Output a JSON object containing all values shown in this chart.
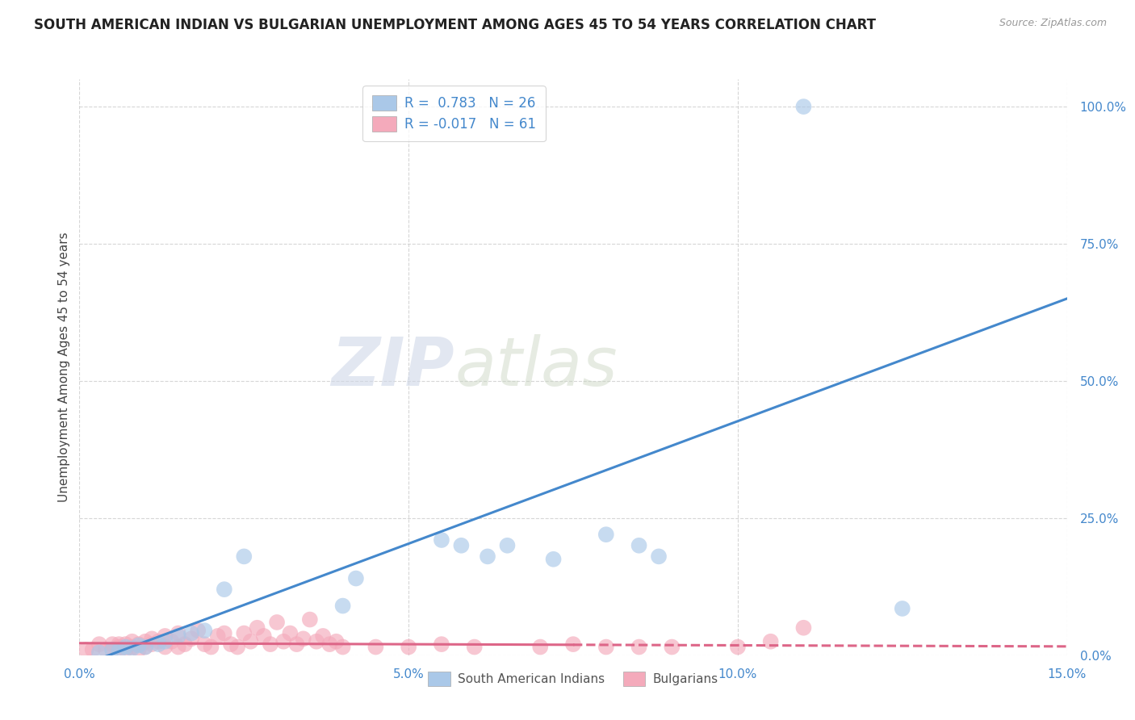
{
  "title": "SOUTH AMERICAN INDIAN VS BULGARIAN UNEMPLOYMENT AMONG AGES 45 TO 54 YEARS CORRELATION CHART",
  "source": "Source: ZipAtlas.com",
  "ylabel": "Unemployment Among Ages 45 to 54 years",
  "xlim": [
    0.0,
    0.15
  ],
  "ylim": [
    0.0,
    1.05
  ],
  "xticks": [
    0.0,
    0.05,
    0.1,
    0.15
  ],
  "xticklabels": [
    "0.0%",
    "5.0%",
    "10.0%",
    "15.0%"
  ],
  "yticks": [
    0.0,
    0.25,
    0.5,
    0.75,
    1.0
  ],
  "yticklabels": [
    "0.0%",
    "25.0%",
    "50.0%",
    "75.0%",
    "100.0%"
  ],
  "blue_R": 0.783,
  "blue_N": 26,
  "pink_R": -0.017,
  "pink_N": 61,
  "legend_label_blue": "South American Indians",
  "legend_label_pink": "Bulgarians",
  "blue_color": "#aac8e8",
  "pink_color": "#f4aabb",
  "blue_line_color": "#4488cc",
  "pink_line_color": "#dd6688",
  "background_color": "#ffffff",
  "watermark_zip": "ZIP",
  "watermark_atlas": "atlas",
  "title_fontsize": 12,
  "axis_label_fontsize": 11,
  "tick_fontsize": 11,
  "blue_line_x0": 0.0,
  "blue_line_y0": -0.02,
  "blue_line_x1": 0.15,
  "blue_line_y1": 0.65,
  "pink_line_x0": 0.0,
  "pink_line_y0": 0.022,
  "pink_line_x1": 0.15,
  "pink_line_y1": 0.016,
  "pink_line_solid_end": 0.075,
  "blue_scatter_x": [
    0.003,
    0.005,
    0.006,
    0.007,
    0.008,
    0.009,
    0.01,
    0.012,
    0.013,
    0.015,
    0.017,
    0.019,
    0.022,
    0.025,
    0.04,
    0.042,
    0.055,
    0.058,
    0.062,
    0.065,
    0.072,
    0.08,
    0.085,
    0.088,
    0.11,
    0.125
  ],
  "blue_scatter_y": [
    0.005,
    0.01,
    0.008,
    0.015,
    0.012,
    0.018,
    0.015,
    0.02,
    0.025,
    0.035,
    0.04,
    0.045,
    0.12,
    0.18,
    0.09,
    0.14,
    0.21,
    0.2,
    0.18,
    0.2,
    0.175,
    0.22,
    0.2,
    0.18,
    1.0,
    0.085
  ],
  "pink_scatter_x": [
    0.001,
    0.002,
    0.003,
    0.004,
    0.005,
    0.005,
    0.006,
    0.006,
    0.007,
    0.007,
    0.008,
    0.008,
    0.009,
    0.009,
    0.01,
    0.01,
    0.011,
    0.011,
    0.012,
    0.013,
    0.013,
    0.014,
    0.015,
    0.015,
    0.016,
    0.017,
    0.018,
    0.019,
    0.02,
    0.021,
    0.022,
    0.023,
    0.024,
    0.025,
    0.026,
    0.027,
    0.028,
    0.029,
    0.03,
    0.031,
    0.032,
    0.033,
    0.034,
    0.035,
    0.036,
    0.037,
    0.038,
    0.039,
    0.04,
    0.045,
    0.05,
    0.055,
    0.06,
    0.07,
    0.075,
    0.08,
    0.085,
    0.09,
    0.1,
    0.105,
    0.11
  ],
  "pink_scatter_y": [
    0.01,
    0.01,
    0.02,
    0.01,
    0.01,
    0.02,
    0.015,
    0.02,
    0.01,
    0.02,
    0.015,
    0.025,
    0.01,
    0.02,
    0.015,
    0.025,
    0.02,
    0.03,
    0.025,
    0.015,
    0.035,
    0.025,
    0.015,
    0.04,
    0.02,
    0.03,
    0.045,
    0.02,
    0.015,
    0.035,
    0.04,
    0.02,
    0.015,
    0.04,
    0.025,
    0.05,
    0.035,
    0.02,
    0.06,
    0.025,
    0.04,
    0.02,
    0.03,
    0.065,
    0.025,
    0.035,
    0.02,
    0.025,
    0.015,
    0.015,
    0.015,
    0.02,
    0.015,
    0.015,
    0.02,
    0.015,
    0.015,
    0.015,
    0.015,
    0.025,
    0.05
  ]
}
